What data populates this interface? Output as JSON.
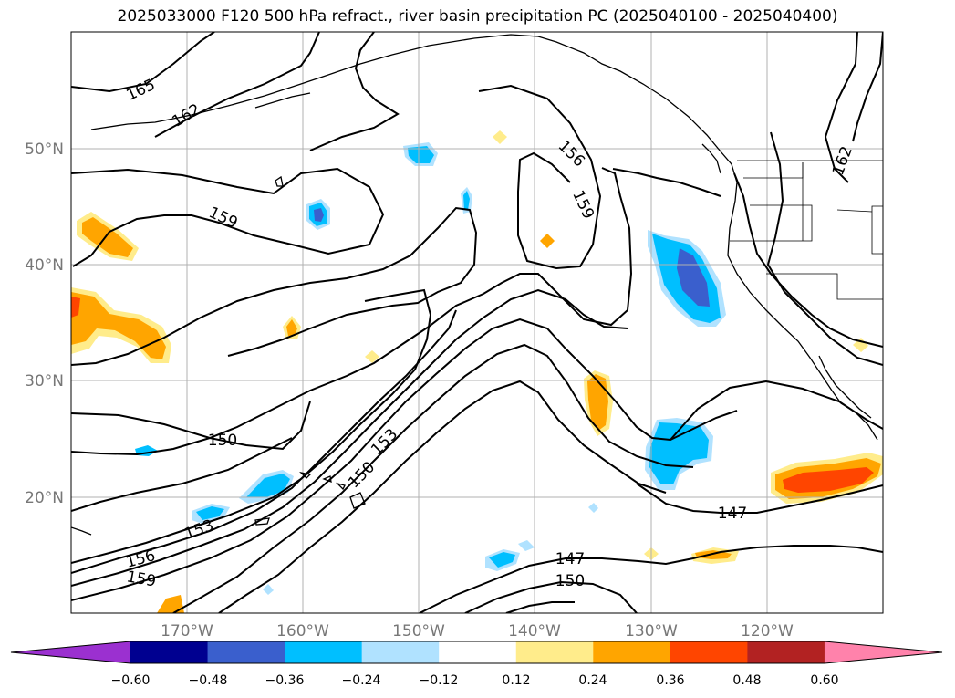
{
  "title": "2025033000 F120 500 hPa refract., river basin precipitation PC (2025040100 - 2025040400)",
  "lat_labels": [
    "50°N",
    "40°N",
    "30°N",
    "20°N"
  ],
  "lon_labels": [
    "170°W",
    "160°W",
    "150°W",
    "140°W",
    "130°W",
    "120°W"
  ],
  "contour_labels": [
    "165",
    "162",
    "159",
    "156",
    "159",
    "162",
    "150",
    "153",
    "150",
    "153",
    "156",
    "159",
    "147",
    "147",
    "150"
  ],
  "colorbar": {
    "ticks": [
      "−0.60",
      "−0.48",
      "−0.36",
      "−0.24",
      "−0.12",
      "0.12",
      "0.24",
      "0.36",
      "0.48",
      "0.60"
    ],
    "colors": [
      "#9b30d0",
      "#000090",
      "#3a5fcd",
      "#00bfff",
      "#b0e2ff",
      "#ffffff",
      "#ffec8b",
      "#ffa500",
      "#ff4500",
      "#b22222",
      "#ff82ab"
    ]
  },
  "fill_colors": {
    "light_blue": "#b0e2ff",
    "blue": "#00bfff",
    "dark_blue": "#3a5fcd",
    "yellow": "#ffec8b",
    "orange": "#ffa500",
    "red": "#ff4500"
  }
}
